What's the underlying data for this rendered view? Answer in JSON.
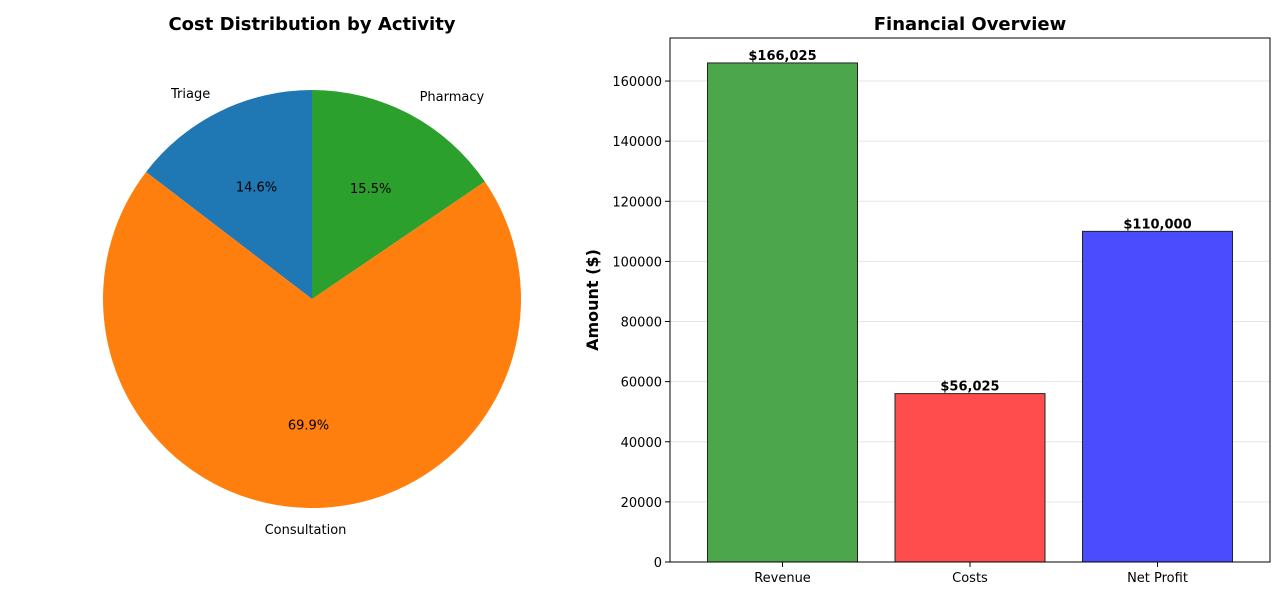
{
  "chart_data": [
    {
      "type": "pie",
      "title": "Cost Distribution by Activity",
      "slices": [
        {
          "label": "Triage",
          "value": 14.6,
          "pct_label": "14.6%",
          "color": "#1f77b4"
        },
        {
          "label": "Consultation",
          "value": 69.9,
          "pct_label": "69.9%",
          "color": "#ff7f0e"
        },
        {
          "label": "Pharmacy",
          "value": 15.5,
          "pct_label": "15.5%",
          "color": "#2ca02c"
        }
      ],
      "start_angle_deg": 90,
      "direction": "counterclockwise"
    },
    {
      "type": "bar",
      "title": "Financial Overview",
      "xlabel": "",
      "ylabel": "Amount ($)",
      "categories": [
        "Revenue",
        "Costs",
        "Net Profit"
      ],
      "values": [
        166025,
        56025,
        110000
      ],
      "value_labels": [
        "$166,025",
        "$56,025",
        "$110,000"
      ],
      "colors": [
        "#4ca64c",
        "#ff4c4c",
        "#4c4cff"
      ],
      "ylim": [
        0,
        174326
      ],
      "yticks": [
        0,
        20000,
        40000,
        60000,
        80000,
        100000,
        120000,
        140000,
        160000
      ],
      "grid": "y"
    }
  ]
}
